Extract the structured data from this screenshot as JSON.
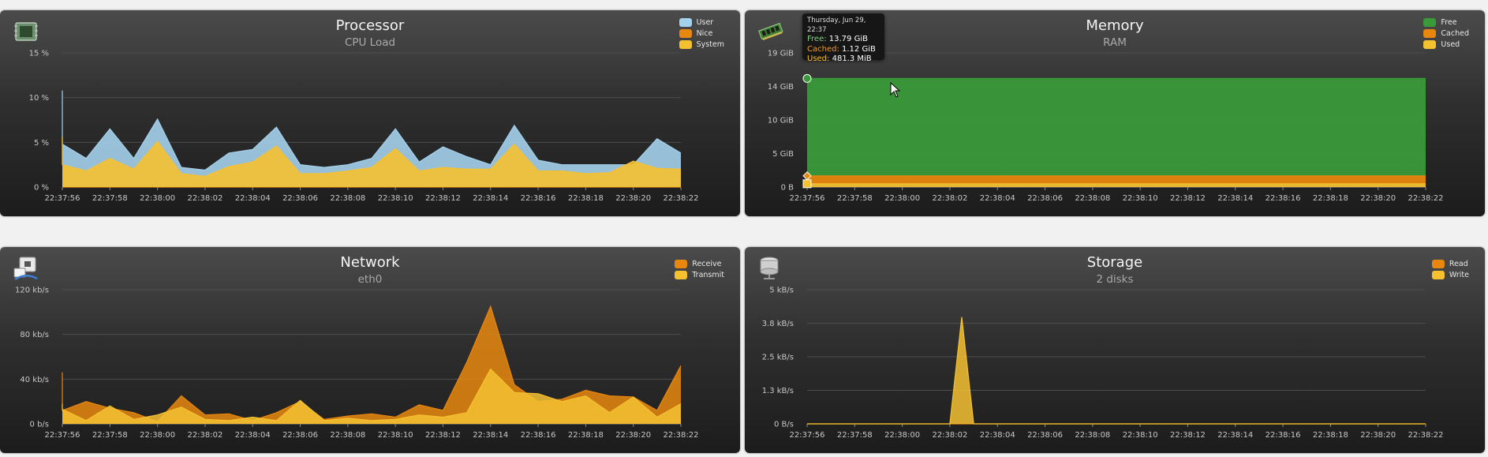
{
  "panels": {
    "cpu": {
      "title": "Processor",
      "subtitle": "CPU Load",
      "icon": "cpu-chip-icon",
      "legend": [
        {
          "label": "User",
          "color": "#a4d1ec"
        },
        {
          "label": "Nice",
          "color": "#e8870e"
        },
        {
          "label": "System",
          "color": "#f5c131"
        }
      ],
      "y_ticks": [
        "15 %",
        "10 %",
        "5 %",
        "0 %"
      ]
    },
    "memory": {
      "title": "Memory",
      "subtitle": "RAM",
      "icon": "ram-module-icon",
      "legend": [
        {
          "label": "Free",
          "color": "#3a9a3a"
        },
        {
          "label": "Cached",
          "color": "#e8870e"
        },
        {
          "label": "Used",
          "color": "#f5c131"
        }
      ],
      "y_ticks": [
        "19 GiB",
        "14 GiB",
        "10 GiB",
        "5 GiB",
        "0 B"
      ]
    },
    "network": {
      "title": "Network",
      "subtitle": "eth0",
      "icon": "network-card-icon",
      "legend": [
        {
          "label": "Receive",
          "color": "#e8870e"
        },
        {
          "label": "Transmit",
          "color": "#f5c131"
        }
      ],
      "y_ticks": [
        "120 kb/s",
        "80 kb/s",
        "40 kb/s",
        "0 b/s"
      ]
    },
    "storage": {
      "title": "Storage",
      "subtitle": "2 disks",
      "icon": "hard-disk-icon",
      "legend": [
        {
          "label": "Read",
          "color": "#e8870e"
        },
        {
          "label": "Write",
          "color": "#f5c131"
        }
      ],
      "y_ticks": [
        "5 kB/s",
        "3.8 kB/s",
        "2.5 kB/s",
        "1.3 kB/s",
        "0 B/s"
      ]
    }
  },
  "x_ticks": [
    "22:37:56",
    "22:37:58",
    "22:38:00",
    "22:38:02",
    "22:38:04",
    "22:38:06",
    "22:38:08",
    "22:38:10",
    "22:38:12",
    "22:38:14",
    "22:38:16",
    "22:38:18",
    "22:38:20",
    "22:38:22"
  ],
  "tooltip": {
    "date": "Thursday, Jun 29, 22:37",
    "free_label": "Free:",
    "free_value": "13.79 GiB",
    "free_color": "#7fd47f",
    "cached_label": "Cached:",
    "cached_value": "1.12 GiB",
    "cached_color": "#f39a26",
    "used_label": "Used:",
    "used_value": "481.3 MiB",
    "used_color": "#f5c131"
  },
  "chart_data": [
    {
      "type": "area",
      "title": "Processor",
      "subtitle": "CPU Load",
      "ylim": [
        0,
        15
      ],
      "x": [
        "22:37:55",
        "22:37:56",
        "22:37:57",
        "22:37:58",
        "22:37:59",
        "22:38:00",
        "22:38:01",
        "22:38:02",
        "22:38:03",
        "22:38:04",
        "22:38:05",
        "22:38:06",
        "22:38:07",
        "22:38:08",
        "22:38:09",
        "22:38:10",
        "22:38:11",
        "22:38:12",
        "22:38:13",
        "22:38:14",
        "22:38:15",
        "22:38:16",
        "22:38:17",
        "22:38:18",
        "22:38:19",
        "22:38:20",
        "22:38:21",
        "22:38:22"
      ],
      "series": [
        {
          "name": "User",
          "color": "#a4d1ec",
          "values": [
            10.8,
            4.8,
            3.2,
            6.5,
            3.2,
            7.6,
            2.2,
            1.9,
            3.8,
            4.2,
            6.7,
            2.5,
            2.2,
            2.5,
            3.2,
            6.5,
            2.8,
            4.5,
            3.4,
            2.5,
            6.9,
            3.0,
            2.5,
            2.5,
            2.5,
            2.5,
            5.4,
            3.8
          ]
        },
        {
          "name": "Nice",
          "color": "#e8870e",
          "values": [
            0,
            0,
            0,
            0,
            0,
            0,
            0,
            0,
            0,
            0,
            0,
            0,
            0,
            0,
            0,
            0,
            0,
            0,
            0,
            0,
            0,
            0,
            0,
            0,
            0,
            0,
            0,
            0
          ]
        },
        {
          "name": "System",
          "color": "#f5c131",
          "values": [
            5.6,
            2.5,
            1.8,
            3.2,
            2.0,
            5.1,
            1.5,
            1.2,
            2.3,
            2.8,
            4.6,
            1.5,
            1.5,
            1.8,
            2.2,
            4.3,
            1.8,
            2.2,
            2.0,
            2.0,
            4.8,
            1.8,
            1.8,
            1.5,
            1.6,
            2.9,
            2.1,
            2.0
          ]
        }
      ]
    },
    {
      "type": "area",
      "title": "Memory",
      "subtitle": "RAM",
      "ylim": [
        0,
        19
      ],
      "x": [
        "22:37:56",
        "22:38:22"
      ],
      "series": [
        {
          "name": "Free",
          "color": "#3a9a3a",
          "values": [
            13.79,
            13.79
          ]
        },
        {
          "name": "Cached",
          "color": "#e8870e",
          "values": [
            1.12,
            1.12
          ]
        },
        {
          "name": "Used",
          "color": "#f5c131",
          "values": [
            0.47,
            0.47
          ]
        }
      ]
    },
    {
      "type": "area",
      "title": "Network",
      "subtitle": "eth0",
      "ylim": [
        0,
        120
      ],
      "x": [
        "22:37:55",
        "22:37:56",
        "22:37:57",
        "22:37:58",
        "22:37:59",
        "22:38:00",
        "22:38:01",
        "22:38:02",
        "22:38:03",
        "22:38:04",
        "22:38:05",
        "22:38:06",
        "22:38:07",
        "22:38:08",
        "22:38:09",
        "22:38:10",
        "22:38:11",
        "22:38:12",
        "22:38:13",
        "22:38:14",
        "22:38:15",
        "22:38:16",
        "22:38:17",
        "22:38:18",
        "22:38:19",
        "22:38:20",
        "22:38:21",
        "22:38:22"
      ],
      "series": [
        {
          "name": "Receive",
          "color": "#e8870e",
          "values": [
            46,
            12,
            20,
            14,
            10,
            2,
            25,
            8,
            9,
            3,
            10,
            20,
            4,
            7,
            9,
            6,
            17,
            12,
            55,
            105,
            35,
            20,
            22,
            30,
            25,
            24,
            12,
            52
          ]
        },
        {
          "name": "Transmit",
          "color": "#f5c131",
          "values": [
            18,
            13,
            3,
            16,
            4,
            8,
            15,
            4,
            3,
            6,
            3,
            21,
            3,
            5,
            3,
            4,
            8,
            6,
            10,
            49,
            28,
            27,
            20,
            25,
            10,
            24,
            6,
            18
          ]
        }
      ]
    },
    {
      "type": "area",
      "title": "Storage",
      "subtitle": "2 disks",
      "ylim": [
        0,
        5
      ],
      "x": [
        "22:37:56",
        "22:38:00",
        "22:38:02",
        "22:38:02.5",
        "22:38:03",
        "22:38:22"
      ],
      "series": [
        {
          "name": "Read",
          "color": "#e8870e",
          "values": [
            0,
            0,
            0,
            0,
            0,
            0
          ]
        },
        {
          "name": "Write",
          "color": "#f5c131",
          "values": [
            0,
            0,
            0,
            3.98,
            0,
            0
          ]
        }
      ]
    }
  ]
}
